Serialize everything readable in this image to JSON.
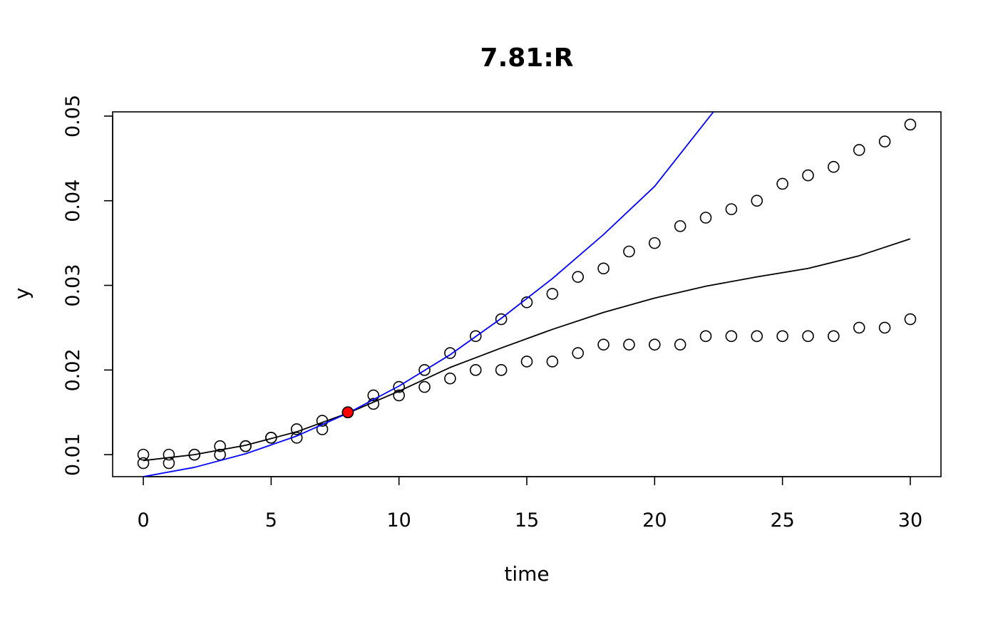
{
  "chart_data": {
    "type": "scatter",
    "title": "7.81:R",
    "xlabel": "time",
    "ylabel": "y",
    "xlim": [
      -1.2,
      31.2
    ],
    "ylim": [
      0.0074,
      0.0505
    ],
    "x_ticks": [
      0,
      5,
      10,
      15,
      20,
      25,
      30
    ],
    "y_ticks": [
      0.01,
      0.02,
      0.03,
      0.04,
      0.05
    ],
    "x_tick_labels": [
      "0",
      "5",
      "10",
      "15",
      "20",
      "25",
      "30"
    ],
    "y_tick_labels": [
      "0.01",
      "0.02",
      "0.03",
      "0.04",
      "0.05"
    ],
    "grid": false,
    "colors": {
      "points": "#000000",
      "fit_line": "#000000",
      "tangent_line": "#0000ff",
      "highlight_point": "#ff0000"
    },
    "series": [
      {
        "kind": "points",
        "x": [
          0,
          1,
          2,
          3,
          4,
          5,
          6,
          7,
          8,
          9,
          10,
          11,
          12,
          13,
          14,
          15,
          16,
          17,
          18,
          19,
          20,
          21,
          22,
          23,
          24,
          25,
          26,
          27,
          28,
          29,
          30
        ],
        "y": [
          0.009,
          0.009,
          0.01,
          0.01,
          0.011,
          0.012,
          0.012,
          0.013,
          0.015,
          0.016,
          0.017,
          0.018,
          0.019,
          0.02,
          0.02,
          0.021,
          0.021,
          0.022,
          0.023,
          0.023,
          0.023,
          0.023,
          0.024,
          0.024,
          0.024,
          0.024,
          0.024,
          0.024,
          0.025,
          0.025,
          0.026
        ]
      },
      {
        "kind": "points",
        "x": [
          0,
          1,
          2,
          3,
          4,
          5,
          6,
          7,
          8,
          9,
          10,
          11,
          12,
          13,
          14,
          15,
          16,
          17,
          18,
          19,
          20,
          21,
          22,
          23,
          24,
          25,
          26,
          27,
          28,
          29,
          30
        ],
        "y": [
          0.01,
          0.01,
          0.01,
          0.011,
          0.011,
          0.012,
          0.013,
          0.014,
          0.015,
          0.017,
          0.018,
          0.02,
          0.022,
          0.024,
          0.026,
          0.028,
          0.029,
          0.031,
          0.032,
          0.034,
          0.035,
          0.037,
          0.038,
          0.039,
          0.04,
          0.042,
          0.043,
          0.044,
          0.046,
          0.047,
          0.049
        ]
      },
      {
        "kind": "line",
        "color": "#000000",
        "x": [
          0,
          2,
          4,
          6,
          8,
          10,
          12,
          14,
          16,
          18,
          20,
          22,
          24,
          26,
          28,
          30
        ],
        "y": [
          0.0093,
          0.01,
          0.0111,
          0.0127,
          0.0149,
          0.0175,
          0.0203,
          0.0226,
          0.0248,
          0.0268,
          0.0285,
          0.0299,
          0.031,
          0.032,
          0.0335,
          0.0355
        ]
      },
      {
        "kind": "line",
        "color": "#0000ff",
        "x": [
          0,
          2,
          4,
          6,
          8,
          10,
          12,
          14,
          16,
          18,
          20,
          22.3
        ],
        "y": [
          0.0074,
          0.0085,
          0.0101,
          0.0122,
          0.0149,
          0.0181,
          0.0218,
          0.0261,
          0.0308,
          0.036,
          0.0417,
          0.0505
        ]
      },
      {
        "kind": "highlight",
        "color": "#ff0000",
        "x": [
          8
        ],
        "y": [
          0.015
        ]
      }
    ]
  }
}
